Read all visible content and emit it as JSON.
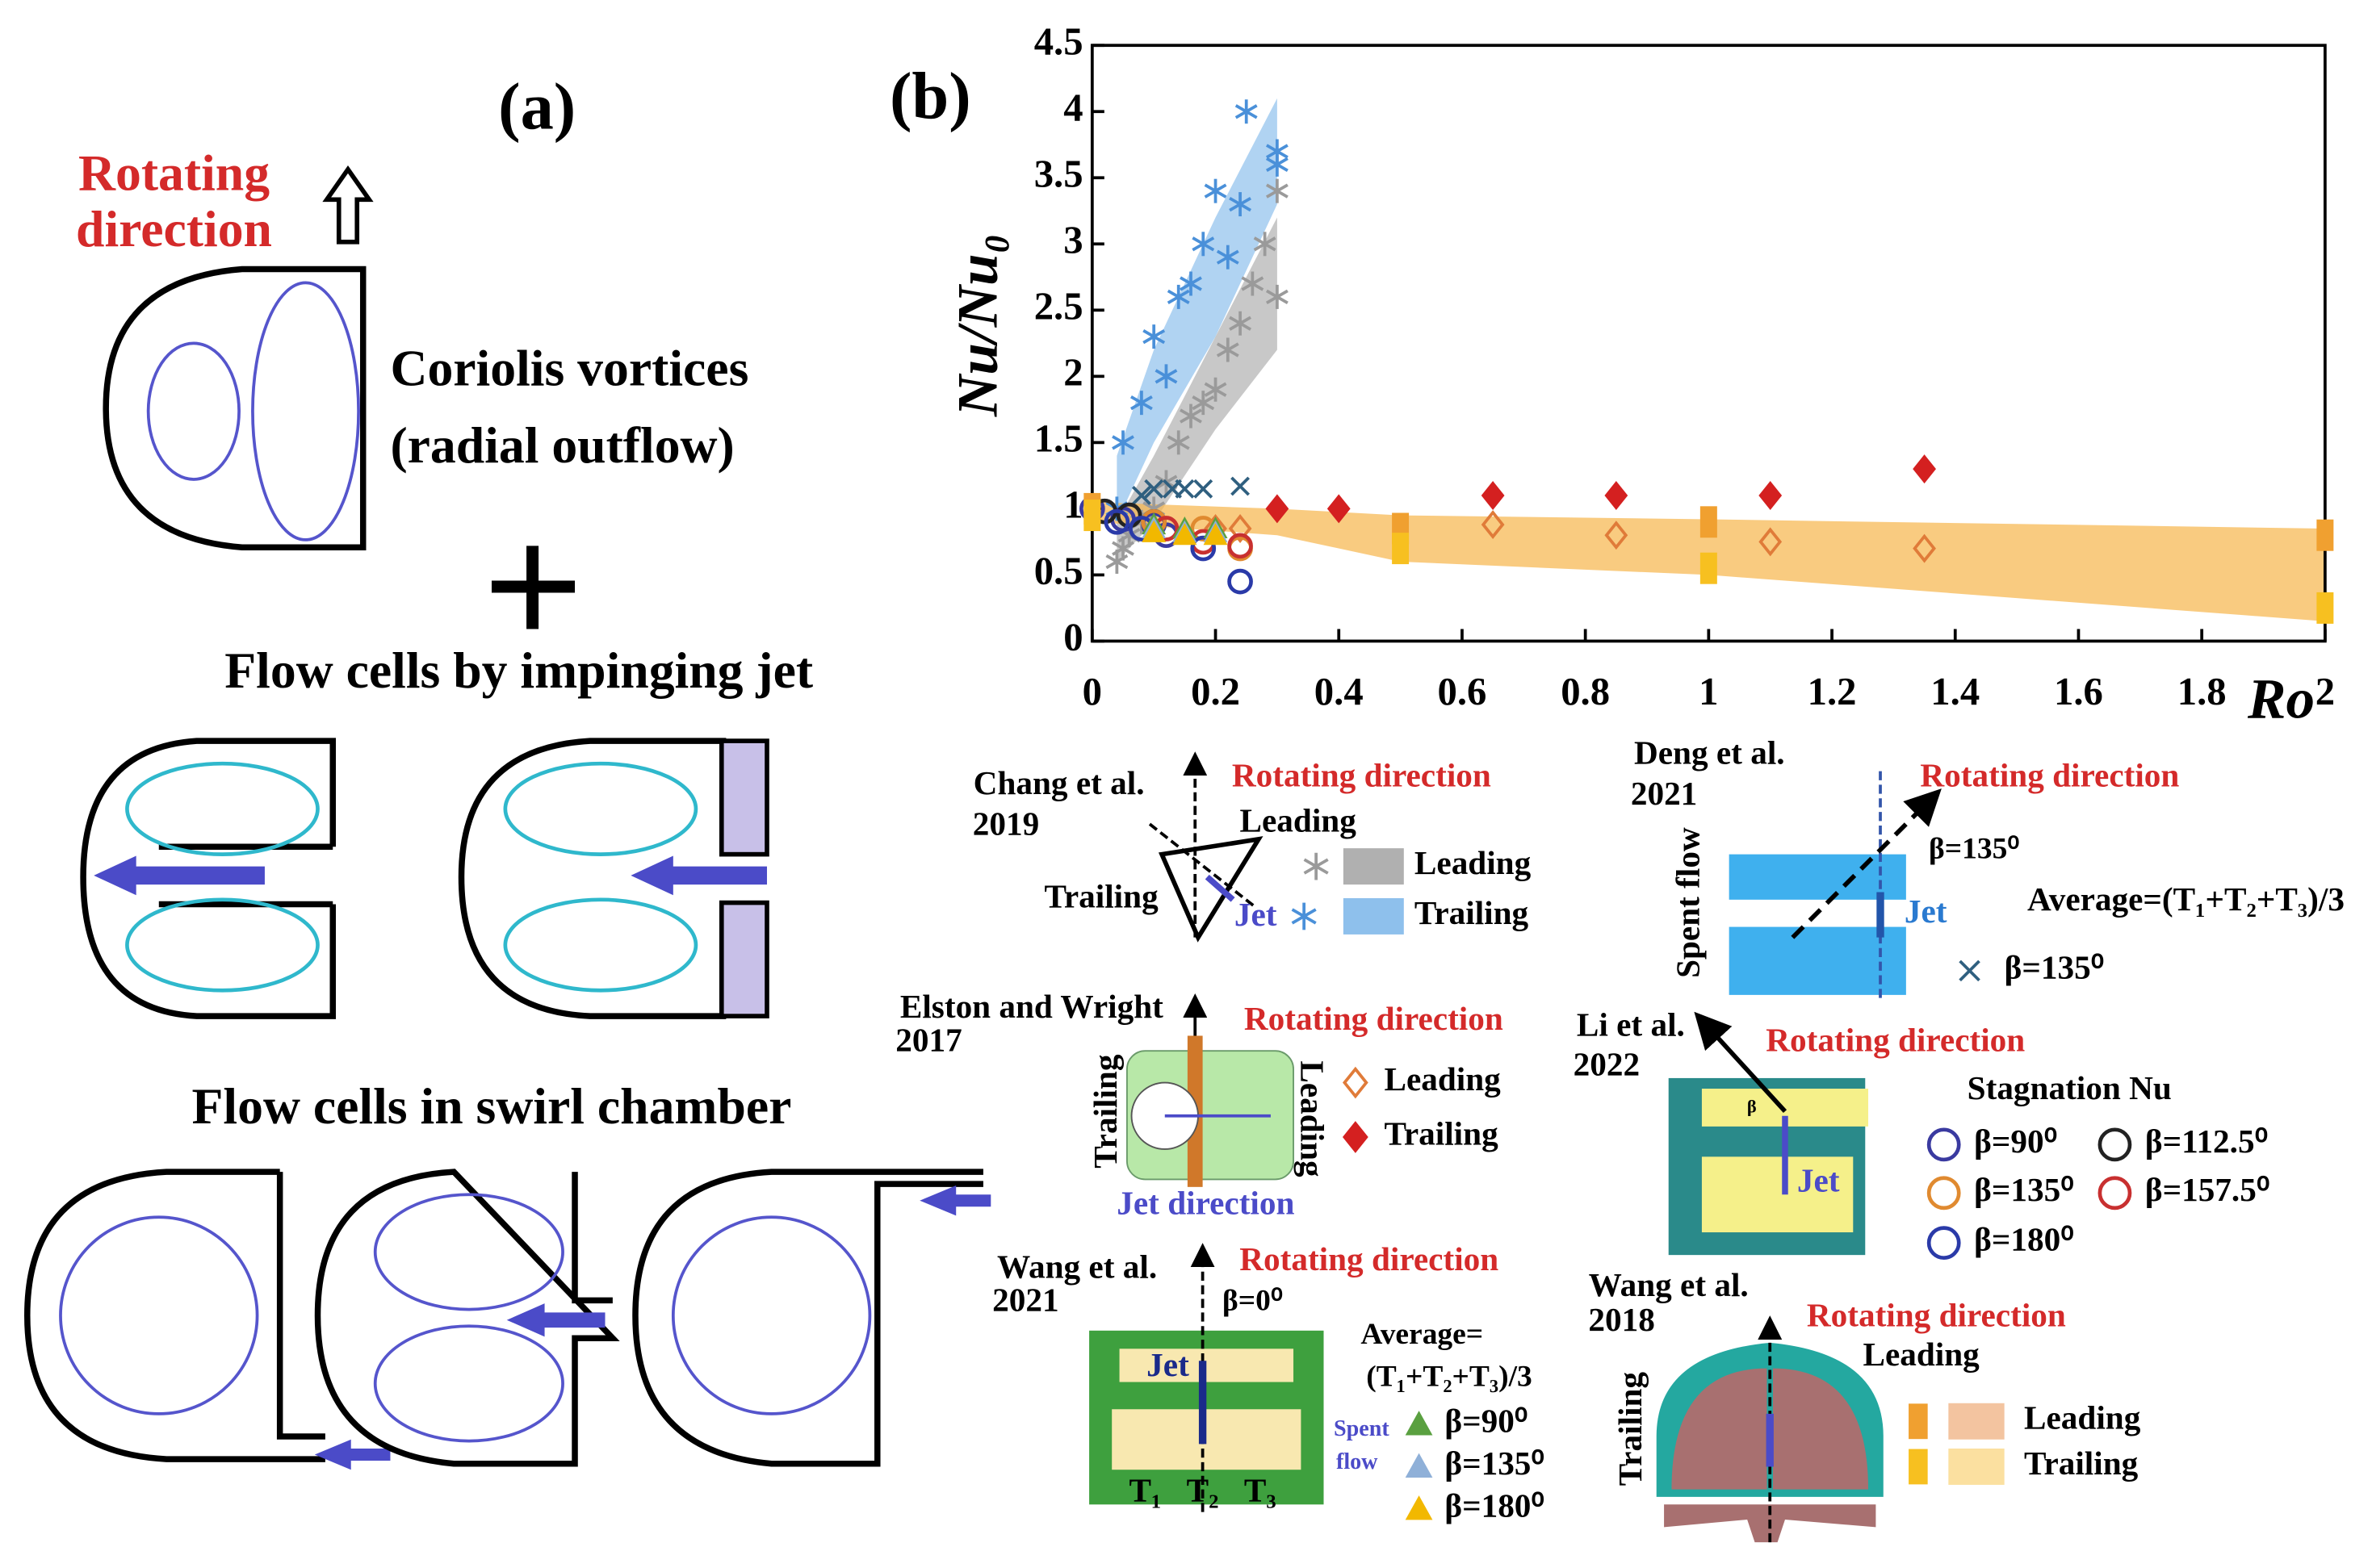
{
  "panel_a": {
    "label": "(a)",
    "rotating": [
      "Rotating",
      "direction"
    ],
    "coriolis": [
      "Coriolis vortices",
      "(radial outflow)"
    ],
    "jet_title": "Flow cells by impinging jet",
    "swirl_title": "Flow cells in swirl chamber"
  },
  "panel_b": {
    "label": "(b)",
    "chang": {
      "author": "Chang et al.",
      "year": "2019",
      "rotating": "Rotating direction",
      "leading": "Leading",
      "trailing": "Trailing",
      "jet": "Jet"
    },
    "deng": {
      "author": "Deng et al.",
      "year": "2021",
      "rotating": "Rotating direction",
      "beta": "β=135⁰",
      "jet": "Jet",
      "spent": "Spent flow",
      "average": "Average=(T₁+T₂+T₃)/3"
    },
    "elston": {
      "author": "Elston and Wright",
      "year": "2017",
      "rotating": "Rotating direction",
      "trailing": "Trailing",
      "leading": "Leading",
      "jet": "Jet direction"
    },
    "li": {
      "author": "Li et al.",
      "year": "2022",
      "rotating": "Rotating direction",
      "stagnation": "Stagnation Nu",
      "beta": "β",
      "jet": "Jet"
    },
    "wang2021": {
      "author": "Wang et al.",
      "year": "2021",
      "rotating": "Rotating direction",
      "beta0": "β=0⁰",
      "jet": "Jet",
      "average": [
        "Average=",
        "(T₁+T₂+T₃)/3"
      ],
      "spent": [
        "Spent",
        "flow"
      ],
      "t": [
        "T₁",
        "T₂",
        "T₃"
      ]
    },
    "wang2018": {
      "author": "Wang et al.",
      "year": "2018",
      "rotating": "Rotating direction",
      "leading": "Leading",
      "trailing": "Trailing"
    }
  },
  "chart_data": {
    "type": "scatter",
    "x_label": "Ro",
    "y_label": "Nu/Nu₀",
    "xlim": [
      0,
      2
    ],
    "xticks": [
      0,
      0.2,
      0.4,
      0.6,
      0.8,
      1,
      1.2,
      1.4,
      1.6,
      1.8,
      2
    ],
    "ylim": [
      0,
      4.5
    ],
    "yticks": [
      0,
      0.5,
      1,
      1.5,
      2,
      2.5,
      3,
      3.5,
      4,
      4.5
    ],
    "bands": [
      {
        "color": "#b0b0b0",
        "x": [
          0.04,
          0.1,
          0.2,
          0.3
        ],
        "lower": [
          0.6,
          0.9,
          1.6,
          2.2
        ],
        "upper": [
          0.9,
          1.4,
          2.3,
          3.2
        ]
      },
      {
        "color": "#8ec0ec",
        "x": [
          0.04,
          0.1,
          0.2,
          0.3
        ],
        "lower": [
          0.9,
          1.5,
          2.3,
          3.3
        ],
        "upper": [
          1.4,
          2.2,
          3.2,
          4.1
        ]
      },
      {
        "color": "#f7b54a",
        "x": [
          0,
          0.3,
          0.5,
          1,
          2
        ],
        "lower": [
          0.9,
          0.8,
          0.6,
          0.5,
          0.15
        ],
        "upper": [
          1.05,
          1.0,
          0.95,
          0.92,
          0.85
        ]
      }
    ],
    "series": [
      {
        "name": "Leading",
        "color": "#9a9a9a",
        "marker": "asterisk",
        "x": [
          0.04,
          0.05,
          0.06,
          0.08,
          0.1,
          0.12,
          0.14,
          0.16,
          0.18,
          0.2,
          0.22,
          0.24,
          0.26,
          0.28,
          0.3,
          0.3
        ],
        "values": [
          0.6,
          0.7,
          0.8,
          0.9,
          1.0,
          1.2,
          1.5,
          1.7,
          1.8,
          1.9,
          2.2,
          2.4,
          2.7,
          3.0,
          2.6,
          3.4
        ]
      },
      {
        "name": "Trailing",
        "color": "#4a90d9",
        "marker": "asterisk",
        "x": [
          0.04,
          0.05,
          0.08,
          0.1,
          0.12,
          0.14,
          0.16,
          0.18,
          0.2,
          0.22,
          0.24,
          0.25,
          0.3,
          0.3
        ],
        "values": [
          1.0,
          1.5,
          1.8,
          2.3,
          2.0,
          2.6,
          2.7,
          3.0,
          3.4,
          2.9,
          3.3,
          4.0,
          3.6,
          3.7
        ]
      },
      {
        "name": "β=135⁰",
        "color": "#2f5f7f",
        "marker": "cross",
        "x": [
          0.08,
          0.1,
          0.13,
          0.15,
          0.18,
          0.24
        ],
        "values": [
          1.1,
          1.15,
          1.15,
          1.15,
          1.15,
          1.17
        ]
      },
      {
        "name": "Leading",
        "color": "#e07b39",
        "marker": "diamond-open",
        "x": [
          0.2,
          0.24,
          0.65,
          0.85,
          1.1,
          1.35
        ],
        "values": [
          0.85,
          0.85,
          0.88,
          0.8,
          0.75,
          0.7
        ]
      },
      {
        "name": "Trailing",
        "color": "#d42020",
        "marker": "diamond",
        "x": [
          0.3,
          0.4,
          0.65,
          0.85,
          1.1,
          1.35
        ],
        "values": [
          1.0,
          1.0,
          1.1,
          1.1,
          1.1,
          1.3
        ]
      },
      {
        "name": "β=90⁰",
        "color": "#3a3aa0",
        "marker": "circle",
        "x": [
          0,
          0.05,
          0.1,
          0.12
        ],
        "values": [
          1.0,
          0.92,
          0.88,
          0.8
        ]
      },
      {
        "name": "β=112.5⁰",
        "color": "#222222",
        "marker": "circle",
        "x": [
          0.02,
          0.06,
          0.1
        ],
        "values": [
          0.98,
          0.95,
          0.9
        ]
      },
      {
        "name": "β=135⁰",
        "color": "#e08a30",
        "marker": "circle",
        "x": [
          0.1,
          0.18,
          0.24
        ],
        "values": [
          0.9,
          0.85,
          0.7
        ]
      },
      {
        "name": "β=157.5⁰",
        "color": "#c83030",
        "marker": "circle",
        "x": [
          0.12,
          0.18,
          0.24
        ],
        "values": [
          0.85,
          0.75,
          0.72
        ]
      },
      {
        "name": "β=180⁰",
        "color": "#2a3aa8",
        "marker": "circle",
        "x": [
          0.04,
          0.08,
          0.18,
          0.24
        ],
        "values": [
          0.9,
          0.85,
          0.7,
          0.45
        ]
      },
      {
        "name": "β=90⁰",
        "color": "#5aa040",
        "marker": "triangle",
        "x": [
          0.1,
          0.15,
          0.2
        ],
        "values": [
          0.88,
          0.85,
          0.85
        ]
      },
      {
        "name": "β=135⁰",
        "color": "#8fb0d8",
        "marker": "triangle",
        "x": [
          0.1,
          0.15,
          0.2
        ],
        "values": [
          0.85,
          0.82,
          0.82
        ]
      },
      {
        "name": "β=180⁰",
        "color": "#f2b800",
        "marker": "triangle",
        "x": [
          0.1,
          0.15,
          0.2
        ],
        "values": [
          0.82,
          0.8,
          0.8
        ]
      },
      {
        "name": "Leading",
        "color": "#f0a030",
        "marker": "square",
        "x": [
          0,
          0.5,
          1,
          2
        ],
        "values": [
          1.0,
          0.85,
          0.9,
          0.8
        ]
      },
      {
        "name": "Trailing",
        "color": "#f7c020",
        "marker": "square",
        "x": [
          0,
          0.5,
          1,
          2
        ],
        "values": [
          0.95,
          0.7,
          0.55,
          0.25
        ]
      }
    ]
  }
}
